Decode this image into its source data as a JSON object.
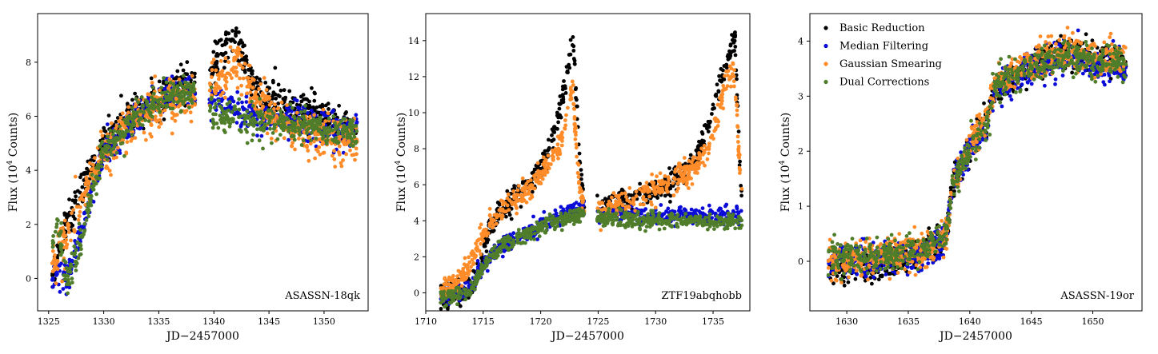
{
  "figure": {
    "xlabel": "JD−2457000",
    "ylabel_prefix": "Flux (10",
    "ylabel_sup": "4",
    "ylabel_suffix": " Counts)"
  },
  "legend": {
    "placement": "top-left of third panel",
    "entries": [
      {
        "label": "Basic Reduction",
        "color": "#000000"
      },
      {
        "label": "Median Filtering",
        "color": "#0b0bd8"
      },
      {
        "label": "Gaussian Smearing",
        "color": "#ff8c28"
      },
      {
        "label": "Dual Corrections",
        "color": "#4f7d2a"
      }
    ]
  },
  "chart_data": [
    {
      "type": "scatter",
      "label": "ASASSN-18qk",
      "xlim": [
        1324,
        1354
      ],
      "ylim": [
        -1.2,
        9.8
      ],
      "xticks": [
        1325,
        1330,
        1335,
        1340,
        1345,
        1350
      ],
      "yticks": [
        0,
        2,
        4,
        6,
        8
      ],
      "gaps": [
        [
          1338.3,
          1339.6
        ]
      ],
      "series": [
        {
          "name": "Basic Reduction",
          "color": "#000000",
          "spread": 0.35,
          "curve": [
            [
              1325.3,
              0.0
            ],
            [
              1325.8,
              1.0
            ],
            [
              1326.5,
              1.8
            ],
            [
              1327.5,
              2.9
            ],
            [
              1328.5,
              3.8
            ],
            [
              1330,
              5.0
            ],
            [
              1332,
              5.8
            ],
            [
              1334,
              6.4
            ],
            [
              1336,
              6.9
            ],
            [
              1338.2,
              7.2
            ],
            [
              1339.6,
              7.6
            ],
            [
              1340.5,
              8.4
            ],
            [
              1341.5,
              8.7
            ],
            [
              1342,
              8.9
            ],
            [
              1342.7,
              8.2
            ],
            [
              1343.5,
              7.3
            ],
            [
              1344.5,
              6.6
            ],
            [
              1346,
              6.4
            ],
            [
              1348,
              6.2
            ],
            [
              1350,
              5.9
            ],
            [
              1353,
              5.5
            ]
          ]
        },
        {
          "name": "Median Filtering",
          "color": "#0b0bd8",
          "spread": 0.3,
          "curve": [
            [
              1325.3,
              0.0
            ],
            [
              1326,
              0.2
            ],
            [
              1326.6,
              0.0
            ],
            [
              1327.3,
              0.9
            ],
            [
              1328,
              1.8
            ],
            [
              1329,
              3.3
            ],
            [
              1330,
              4.6
            ],
            [
              1332,
              5.5
            ],
            [
              1334,
              6.3
            ],
            [
              1336,
              6.8
            ],
            [
              1338.2,
              7.0
            ],
            [
              1339.6,
              6.6
            ],
            [
              1341,
              6.3
            ],
            [
              1343,
              6.0
            ],
            [
              1345,
              5.9
            ],
            [
              1348,
              5.8
            ],
            [
              1350,
              5.6
            ],
            [
              1353,
              5.4
            ]
          ]
        },
        {
          "name": "Gaussian Smearing",
          "color": "#ff8c28",
          "spread": 0.4,
          "curve": [
            [
              1325.3,
              0.3
            ],
            [
              1326,
              1.0
            ],
            [
              1327,
              2.0
            ],
            [
              1328.5,
              3.4
            ],
            [
              1330,
              4.6
            ],
            [
              1332,
              5.5
            ],
            [
              1334,
              6.2
            ],
            [
              1336,
              6.6
            ],
            [
              1338.2,
              6.8
            ],
            [
              1339.6,
              7.2
            ],
            [
              1340.8,
              7.4
            ],
            [
              1342,
              8.0
            ],
            [
              1343,
              7.4
            ],
            [
              1344,
              6.6
            ],
            [
              1346,
              5.8
            ],
            [
              1348,
              5.4
            ],
            [
              1350,
              5.2
            ],
            [
              1353,
              5.0
            ]
          ]
        },
        {
          "name": "Dual Corrections",
          "color": "#4f7d2a",
          "spread": 0.3,
          "curve": [
            [
              1325.3,
              1.3
            ],
            [
              1325.8,
              2.0
            ],
            [
              1326.3,
              0.8
            ],
            [
              1326.7,
              0.0
            ],
            [
              1327.3,
              0.6
            ],
            [
              1328,
              1.6
            ],
            [
              1329,
              3.3
            ],
            [
              1330,
              4.7
            ],
            [
              1332,
              5.6
            ],
            [
              1334,
              6.3
            ],
            [
              1336,
              6.8
            ],
            [
              1338.2,
              6.9
            ],
            [
              1339.6,
              6.3
            ],
            [
              1340.5,
              6.0
            ],
            [
              1342,
              5.9
            ],
            [
              1344,
              5.8
            ],
            [
              1346,
              5.8
            ],
            [
              1348,
              5.7
            ],
            [
              1350,
              5.5
            ],
            [
              1353,
              5.4
            ]
          ]
        }
      ]
    },
    {
      "type": "scatter",
      "label": "ZTF19abqhobb",
      "xlim": [
        1710,
        1738.2
      ],
      "ylim": [
        -1.0,
        15.5
      ],
      "xticks": [
        1710,
        1715,
        1720,
        1725,
        1730,
        1735
      ],
      "yticks": [
        0,
        2,
        4,
        6,
        8,
        10,
        12,
        14
      ],
      "gaps": [
        [
          1723.8,
          1724.9
        ]
      ],
      "series": [
        {
          "name": "Basic Reduction",
          "color": "#000000",
          "spread": 0.35,
          "curve": [
            [
              1711.3,
              -0.2
            ],
            [
              1713,
              0.0
            ],
            [
              1714,
              0.2
            ],
            [
              1714.6,
              1.5
            ],
            [
              1715.5,
              3.5
            ],
            [
              1717,
              4.8
            ],
            [
              1719,
              6.0
            ],
            [
              1720.5,
              7.5
            ],
            [
              1721.5,
              9.5
            ],
            [
              1722.3,
              12.0
            ],
            [
              1722.8,
              14.3
            ],
            [
              1723.1,
              11.0
            ],
            [
              1723.4,
              7.0
            ],
            [
              1723.7,
              5.2
            ],
            [
              1725,
              4.8
            ],
            [
              1727,
              5.0
            ],
            [
              1729,
              5.5
            ],
            [
              1731,
              6.0
            ],
            [
              1733,
              7.0
            ],
            [
              1734.5,
              9.0
            ],
            [
              1735.5,
              11.5
            ],
            [
              1736.3,
              13.0
            ],
            [
              1736.9,
              14.3
            ],
            [
              1737.2,
              9.0
            ],
            [
              1737.5,
              5.0
            ]
          ]
        },
        {
          "name": "Median Filtering",
          "color": "#0b0bd8",
          "spread": 0.22,
          "curve": [
            [
              1711.3,
              -0.2
            ],
            [
              1713,
              0.0
            ],
            [
              1714,
              0.2
            ],
            [
              1714.6,
              1.3
            ],
            [
              1715.5,
              2.0
            ],
            [
              1717,
              2.8
            ],
            [
              1719,
              3.4
            ],
            [
              1721,
              4.0
            ],
            [
              1723,
              4.6
            ],
            [
              1723.7,
              4.6
            ],
            [
              1725,
              4.4
            ],
            [
              1727,
              4.3
            ],
            [
              1730,
              4.3
            ],
            [
              1733,
              4.3
            ],
            [
              1736,
              4.3
            ],
            [
              1737.5,
              4.3
            ]
          ]
        },
        {
          "name": "Gaussian Smearing",
          "color": "#ff8c28",
          "spread": 0.35,
          "curve": [
            [
              1711.3,
              0.0
            ],
            [
              1713,
              0.7
            ],
            [
              1714,
              1.8
            ],
            [
              1714.6,
              2.7
            ],
            [
              1715.5,
              3.8
            ],
            [
              1717,
              4.8
            ],
            [
              1719,
              5.8
            ],
            [
              1720.5,
              6.8
            ],
            [
              1721.5,
              8.0
            ],
            [
              1722.3,
              9.5
            ],
            [
              1722.8,
              11.5
            ],
            [
              1723.1,
              8.0
            ],
            [
              1723.4,
              6.0
            ],
            [
              1723.7,
              5.0
            ],
            [
              1725,
              4.4
            ],
            [
              1727,
              4.8
            ],
            [
              1729,
              5.5
            ],
            [
              1731,
              6.0
            ],
            [
              1733,
              6.7
            ],
            [
              1734.5,
              8.0
            ],
            [
              1735.5,
              10.0
            ],
            [
              1736.3,
              12.0
            ],
            [
              1736.9,
              12.5
            ],
            [
              1737.2,
              8.0
            ],
            [
              1737.5,
              6.0
            ]
          ]
        },
        {
          "name": "Dual Corrections",
          "color": "#4f7d2a",
          "spread": 0.22,
          "curve": [
            [
              1711.3,
              -0.3
            ],
            [
              1713,
              -0.1
            ],
            [
              1714,
              0.1
            ],
            [
              1714.6,
              1.0
            ],
            [
              1715.5,
              2.0
            ],
            [
              1717,
              2.8
            ],
            [
              1719,
              3.3
            ],
            [
              1721,
              3.9
            ],
            [
              1723,
              4.2
            ],
            [
              1723.7,
              4.3
            ],
            [
              1725,
              4.2
            ],
            [
              1727,
              4.1
            ],
            [
              1730,
              4.0
            ],
            [
              1733,
              4.0
            ],
            [
              1736,
              3.9
            ],
            [
              1737.5,
              4.0
            ]
          ]
        }
      ]
    },
    {
      "type": "scatter",
      "label": "ASASSN-19or",
      "xlim": [
        1627,
        1654
      ],
      "ylim": [
        -0.9,
        4.5
      ],
      "xticks": [
        1630,
        1635,
        1640,
        1645,
        1650
      ],
      "yticks": [
        0,
        1,
        2,
        3,
        4
      ],
      "gaps": [],
      "series": [
        {
          "name": "Basic Reduction",
          "color": "#000000",
          "spread": 0.14,
          "curve": [
            [
              1628.5,
              -0.1
            ],
            [
              1632,
              -0.1
            ],
            [
              1636,
              0.1
            ],
            [
              1638,
              0.4
            ],
            [
              1638.7,
              1.5
            ],
            [
              1639.5,
              1.8
            ],
            [
              1640.3,
              2.2
            ],
            [
              1641.5,
              2.6
            ],
            [
              1642,
              3.1
            ],
            [
              1644,
              3.4
            ],
            [
              1646,
              3.7
            ],
            [
              1648,
              3.8
            ],
            [
              1650,
              3.7
            ],
            [
              1652.7,
              3.6
            ]
          ]
        },
        {
          "name": "Median Filtering",
          "color": "#0b0bd8",
          "spread": 0.14,
          "curve": [
            [
              1628.5,
              0.0
            ],
            [
              1632,
              0.0
            ],
            [
              1636,
              0.1
            ],
            [
              1638,
              0.4
            ],
            [
              1638.7,
              1.5
            ],
            [
              1639.5,
              1.8
            ],
            [
              1640.3,
              2.2
            ],
            [
              1641.5,
              2.5
            ],
            [
              1642,
              3.1
            ],
            [
              1644,
              3.4
            ],
            [
              1646,
              3.6
            ],
            [
              1648,
              3.7
            ],
            [
              1650,
              3.6
            ],
            [
              1652.7,
              3.5
            ]
          ]
        },
        {
          "name": "Gaussian Smearing",
          "color": "#ff8c28",
          "spread": 0.16,
          "curve": [
            [
              1628.5,
              0.0
            ],
            [
              1632,
              0.1
            ],
            [
              1636,
              0.2
            ],
            [
              1638,
              0.4
            ],
            [
              1638.7,
              1.5
            ],
            [
              1639.5,
              1.8
            ],
            [
              1640.3,
              2.3
            ],
            [
              1641.5,
              2.6
            ],
            [
              1642,
              3.2
            ],
            [
              1644,
              3.5
            ],
            [
              1646,
              3.7
            ],
            [
              1648,
              3.8
            ],
            [
              1650,
              3.7
            ],
            [
              1652.7,
              3.7
            ]
          ]
        },
        {
          "name": "Dual Corrections",
          "color": "#4f7d2a",
          "spread": 0.14,
          "curve": [
            [
              1628.5,
              0.1
            ],
            [
              1632,
              0.1
            ],
            [
              1636,
              0.2
            ],
            [
              1638,
              0.4
            ],
            [
              1638.7,
              1.4
            ],
            [
              1639.5,
              1.8
            ],
            [
              1640.3,
              2.2
            ],
            [
              1641.5,
              2.5
            ],
            [
              1642,
              3.2
            ],
            [
              1644,
              3.4
            ],
            [
              1646,
              3.6
            ],
            [
              1648,
              3.7
            ],
            [
              1650,
              3.6
            ],
            [
              1652.7,
              3.6
            ]
          ]
        }
      ]
    }
  ]
}
